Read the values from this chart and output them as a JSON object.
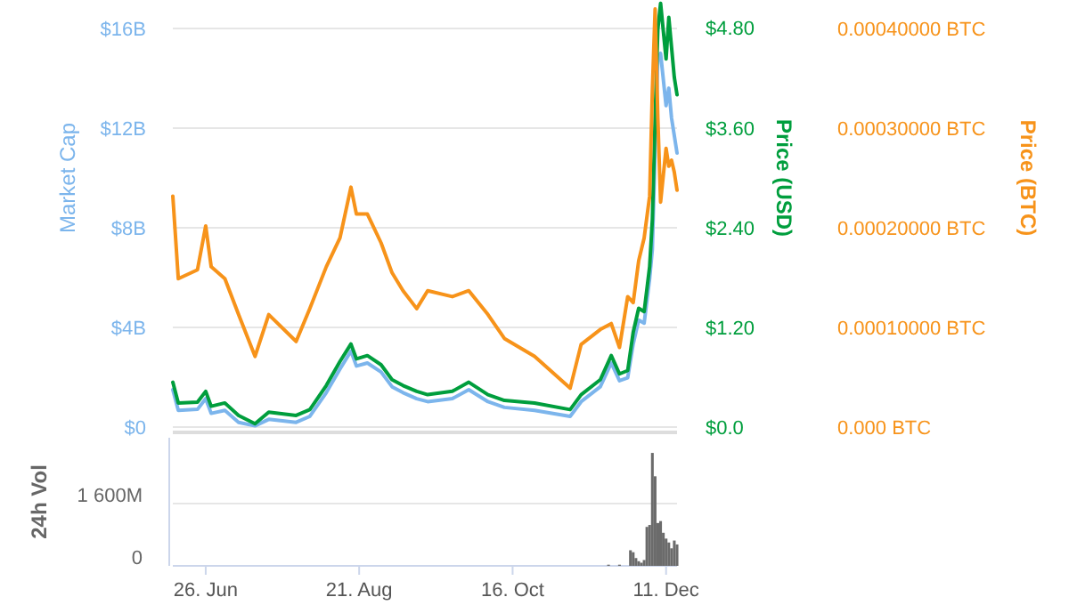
{
  "chart_data": [
    {
      "type": "line",
      "ylabel": "Market Cap",
      "y2label": "Price (USD)",
      "y3label": "Price (BTC)",
      "grid": "y",
      "tick_labels": "y",
      "xlim": [
        "--06-14",
        "--12-15"
      ],
      "ylim": [
        0,
        17.14
      ],
      "yticks": [
        {
          "value": 0,
          "label": "$0"
        },
        {
          "value": 4,
          "label": "$4B"
        },
        {
          "value": 8,
          "label": "$8B"
        },
        {
          "value": 12,
          "label": "$12B"
        },
        {
          "value": 16,
          "label": "$16B"
        }
      ],
      "y2lim": [
        0,
        5.14
      ],
      "y2ticks": [
        {
          "value": 0,
          "label": "$0.0"
        },
        {
          "value": 1.2,
          "label": "$1.20"
        },
        {
          "value": 2.4,
          "label": "$2.40"
        },
        {
          "value": 3.6,
          "label": "$3.60"
        },
        {
          "value": 4.8,
          "label": "$4.80"
        }
      ],
      "y3lim": [
        0,
        0.000429
      ],
      "y3ticks": [
        {
          "value": 0,
          "label": "0.000 BTC"
        },
        {
          "value": 0.0001,
          "label": "0.00010000 BTC"
        },
        {
          "value": 0.0002,
          "label": "0.00020000 BTC"
        },
        {
          "value": 0.0003,
          "label": "0.00030000 BTC"
        },
        {
          "value": 0.0004,
          "label": "0.00040000 BTC"
        }
      ],
      "x": [
        "--06-14",
        "--06-16",
        "--06-23",
        "--06-26",
        "--06-28",
        "--07-03",
        "--07-08",
        "--07-14",
        "--07-19",
        "--07-29",
        "--08-03",
        "--08-09",
        "--08-14",
        "--08-18",
        "--08-20",
        "--08-24",
        "--08-29",
        "--09-02",
        "--09-06",
        "--09-11",
        "--09-15",
        "--09-24",
        "--09-30",
        "--10-07",
        "--10-13",
        "--10-24",
        "--11-06",
        "--11-10",
        "--11-17",
        "--11-21",
        "--11-24",
        "--11-27",
        "--11-29",
        "--12-01",
        "--12-03",
        "--12-05",
        "--12-06",
        "--12-07",
        "--12-08",
        "--12-09",
        "--12-11",
        "--12-12",
        "--12-13",
        "--12-14",
        "--12-15"
      ],
      "series": [
        {
          "axis": "y",
          "color": "#7cb5ec",
          "values": [
            1.5,
            0.67,
            0.71,
            1.14,
            0.55,
            0.67,
            0.19,
            0.05,
            0.31,
            0.19,
            0.43,
            1.38,
            2.33,
            3.05,
            2.45,
            2.57,
            2.21,
            1.62,
            1.38,
            1.14,
            1.02,
            1.14,
            1.5,
            1.02,
            0.79,
            0.67,
            0.43,
            1.02,
            1.62,
            2.57,
            1.86,
            1.98,
            3.33,
            4.29,
            4.17,
            5.95,
            7.14,
            11.2,
            14.8,
            15.0,
            12.9,
            13.6,
            12.4,
            11.7,
            11.0
          ]
        },
        {
          "axis": "y2",
          "color": "#009e3d",
          "values": [
            0.54,
            0.29,
            0.3,
            0.43,
            0.25,
            0.29,
            0.14,
            0.04,
            0.18,
            0.14,
            0.21,
            0.5,
            0.79,
            1.0,
            0.82,
            0.86,
            0.75,
            0.57,
            0.5,
            0.43,
            0.39,
            0.43,
            0.54,
            0.39,
            0.32,
            0.29,
            0.21,
            0.39,
            0.57,
            0.86,
            0.64,
            0.68,
            1.14,
            1.43,
            1.39,
            1.93,
            2.5,
            3.71,
            4.79,
            5.1,
            4.43,
            4.93,
            4.57,
            4.21,
            4.0
          ]
        },
        {
          "axis": "y3",
          "color": "#f7931a",
          "values": [
            0.000232,
            0.000149,
            0.000158,
            0.000202,
            0.000161,
            0.000149,
            0.000113,
            7.1e-05,
            0.000113,
            8.6e-05,
            0.000119,
            0.000161,
            0.00019,
            0.000241,
            0.000214,
            0.000214,
            0.000185,
            0.000155,
            0.000137,
            0.000119,
            0.000137,
            0.000131,
            0.000137,
            0.000113,
            8.9e-05,
            7.1e-05,
            3.9e-05,
            8.3e-05,
            9.8e-05,
            0.000104,
            8e-05,
            0.000131,
            0.000125,
            0.000167,
            0.00019,
            0.000232,
            0.000339,
            0.00042,
            0.00031,
            0.000226,
            0.00028,
            0.000262,
            0.000268,
            0.000256,
            0.000238
          ]
        }
      ]
    },
    {
      "type": "bar",
      "ylabel": "24h Vol",
      "grid": "y",
      "color": "#6b6b6b",
      "xlim": [
        "--06-14",
        "--12-15"
      ],
      "xticks": [
        {
          "value": "--06-26",
          "label": "26. Jun"
        },
        {
          "value": "--08-21",
          "label": "21. Aug"
        },
        {
          "value": "--10-16",
          "label": "16. Oct"
        },
        {
          "value": "--12-11",
          "label": "11. Dec"
        }
      ],
      "ylim": [
        0,
        3290
      ],
      "yticks": [
        {
          "value": 0,
          "label": "0"
        },
        {
          "value": 1600,
          "label": "1 600M"
        }
      ],
      "x": [
        "--11-20",
        "--11-24",
        "--11-28",
        "--11-29",
        "--11-30",
        "--12-01",
        "--12-02",
        "--12-03",
        "--12-04",
        "--12-05",
        "--12-06",
        "--12-07",
        "--12-08",
        "--12-09",
        "--12-10",
        "--12-11",
        "--12-12",
        "--12-13",
        "--12-14",
        "--12-15"
      ],
      "values": [
        30,
        30,
        400,
        350,
        200,
        120,
        80,
        150,
        1000,
        1050,
        2900,
        2300,
        1100,
        1150,
        850,
        700,
        600,
        450,
        650,
        550
      ]
    }
  ]
}
